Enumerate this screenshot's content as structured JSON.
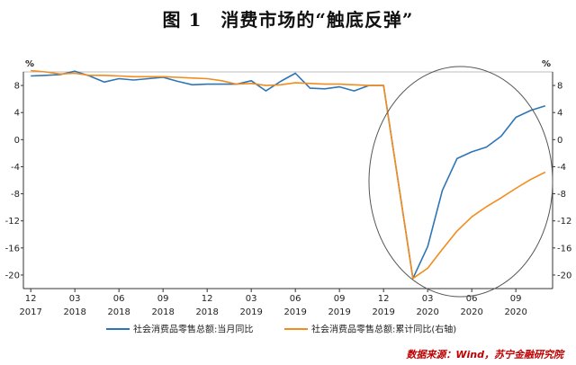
{
  "title": "图 1　消费市场的“触底反弹”",
  "source": "数据来源：Wind，苏宁金融研究院",
  "chart_data": {
    "type": "line",
    "y_unit_left": "%",
    "y_unit_right": "%",
    "ylim": [
      -22,
      10
    ],
    "yticks": [
      8,
      4,
      0,
      -4,
      -8,
      -12,
      -16,
      -20
    ],
    "x_tick_labels": [
      {
        "month": "12",
        "year": "2017"
      },
      {
        "month": "03",
        "year": "2018"
      },
      {
        "month": "06",
        "year": "2018"
      },
      {
        "month": "09",
        "year": "2018"
      },
      {
        "month": "12",
        "year": "2018"
      },
      {
        "month": "03",
        "year": "2019"
      },
      {
        "month": "06",
        "year": "2019"
      },
      {
        "month": "09",
        "year": "2019"
      },
      {
        "month": "12",
        "year": "2019"
      },
      {
        "month": "03",
        "year": "2020"
      },
      {
        "month": "06",
        "year": "2020"
      },
      {
        "month": "09",
        "year": "2020"
      }
    ],
    "x": [
      "2017-12",
      "2018-01",
      "2018-02",
      "2018-03",
      "2018-04",
      "2018-05",
      "2018-06",
      "2018-07",
      "2018-08",
      "2018-09",
      "2018-10",
      "2018-11",
      "2018-12",
      "2019-01",
      "2019-02",
      "2019-03",
      "2019-04",
      "2019-05",
      "2019-06",
      "2019-07",
      "2019-08",
      "2019-09",
      "2019-10",
      "2019-11",
      "2019-12",
      "2020-01",
      "2020-02",
      "2020-03",
      "2020-04",
      "2020-05",
      "2020-06",
      "2020-07",
      "2020-08",
      "2020-09",
      "2020-10",
      "2020-11"
    ],
    "series": [
      {
        "name": "社会消费品零售总额:当月同比",
        "color": "#2e75b6",
        "axis": "left",
        "values": [
          9.4,
          9.5,
          9.6,
          10.1,
          9.4,
          8.5,
          9.0,
          8.8,
          9.0,
          9.2,
          8.6,
          8.1,
          8.2,
          8.2,
          8.2,
          8.7,
          7.2,
          8.6,
          9.8,
          7.6,
          7.5,
          7.8,
          7.2,
          8.0,
          8.0,
          null,
          -20.5,
          -15.8,
          -7.5,
          -2.8,
          -1.8,
          -1.1,
          0.5,
          3.3,
          4.3,
          5.0
        ]
      },
      {
        "name": "社会消费品零售总额:累计同比(右轴)",
        "color": "#f28c1e",
        "axis": "right",
        "values": [
          10.2,
          10.0,
          9.7,
          9.8,
          9.5,
          9.5,
          9.4,
          9.3,
          9.3,
          9.3,
          9.2,
          9.1,
          9.0,
          8.7,
          8.2,
          8.3,
          8.0,
          8.1,
          8.4,
          8.3,
          8.2,
          8.2,
          8.1,
          8.0,
          8.0,
          null,
          -20.5,
          -19.0,
          -16.2,
          -13.5,
          -11.4,
          -9.9,
          -8.6,
          -7.2,
          -5.9,
          -4.8
        ]
      }
    ]
  }
}
